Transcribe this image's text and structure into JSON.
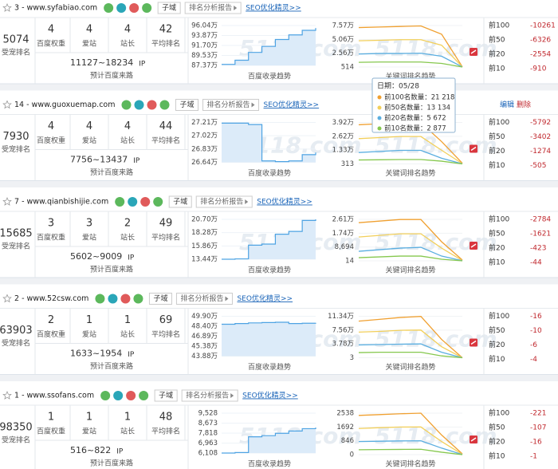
{
  "labels": {
    "score": "受宠排名",
    "stats": [
      "百度权重",
      "爱站",
      "站长",
      "平均排名"
    ],
    "ip": "IP",
    "ip_caption": "预计百度来路",
    "subdomain": "子域",
    "report": "排名分析报告",
    "seo": "SEO优化精灵>>",
    "index_caption": "百度收录趋势",
    "kw_caption": "关键词排名趋势",
    "levels": [
      "前100",
      "前50",
      "前20",
      "前10"
    ],
    "watermark": "5118.com",
    "edit": "编辑",
    "delete": "删除"
  },
  "kw_colors": [
    "#f0a030",
    "#f2cf5a",
    "#5aaee0",
    "#86c84e"
  ],
  "cards": [
    {
      "title": "3 - www.syfabiao.com",
      "score": 5074,
      "stats": [
        4,
        4,
        4,
        42
      ],
      "ip_range": "11127~18234",
      "index_chart": {
        "ylim": [
          873700,
          960400
        ],
        "yticks": [
          {
            "value": 960400,
            "label": "96.04万"
          },
          {
            "value": 938700,
            "label": "93.87万"
          },
          {
            "value": 917000,
            "label": "91.70万"
          },
          {
            "value": 895300,
            "label": "89.53万"
          },
          {
            "value": 873700,
            "label": "87.37万"
          }
        ],
        "values": [
          876000,
          885000,
          902000,
          915000,
          930000,
          940000,
          950000,
          955000
        ]
      },
      "kw_chart": {
        "ylim": [
          514,
          75700
        ],
        "yticks": [
          {
            "value": 75700,
            "label": "7.57万"
          },
          {
            "value": 50600,
            "label": "5.06万"
          },
          {
            "value": 25600,
            "label": "2.56万"
          },
          514
        ],
        "series": [
          [
            72000,
            73000,
            74000,
            75000,
            60000,
            1000
          ],
          [
            48000,
            49000,
            50000,
            50000,
            40000,
            800
          ],
          [
            24000,
            25000,
            25000,
            25500,
            20000,
            600
          ],
          [
            9000,
            9500,
            9600,
            9600,
            7000,
            514
          ]
        ]
      },
      "changes": [
        -10261,
        -6326,
        -2554,
        -910
      ]
    },
    {
      "title": "14 - www.guoxuemap.com",
      "score": 7930,
      "stats": [
        4,
        4,
        4,
        44
      ],
      "ip_range": "7756~13437",
      "actions": true,
      "index_chart": {
        "ylim": [
          266400,
          272100
        ],
        "yticks": [
          {
            "value": 272100,
            "label": "27.21万"
          },
          {
            "value": 270200,
            "label": "27.02万"
          },
          {
            "value": 268300,
            "label": "26.83万"
          },
          {
            "value": 266400,
            "label": "26.64万"
          }
        ],
        "values": [
          272000,
          272000,
          271800,
          266600,
          266500,
          266600,
          267500,
          267800
        ]
      },
      "kw_chart": {
        "ylim": [
          313,
          39200
        ],
        "yticks": [
          {
            "value": 39200,
            "label": "3.92万"
          },
          {
            "value": 26200,
            "label": "2.62万"
          },
          {
            "value": 13300,
            "label": "1.33万"
          },
          313
        ],
        "series": [
          [
            37000,
            38000,
            38500,
            39000,
            21218,
            1000
          ],
          [
            24000,
            25000,
            26000,
            26000,
            13134,
            600
          ],
          [
            11000,
            12000,
            13000,
            13000,
            5672,
            400
          ],
          [
            4000,
            4200,
            4400,
            4400,
            2877,
            313
          ]
        ]
      },
      "changes": [
        -5792,
        -3402,
        -1274,
        -505
      ],
      "tooltip": {
        "date": "日期：05/28",
        "rows": [
          "前100名数量：21 218",
          "前50名数量：13 134",
          "前20名数量：5 672",
          "前10名数量：2 877"
        ]
      }
    },
    {
      "title": "7 - www.qianbishijie.com",
      "score": 15685,
      "stats": [
        3,
        3,
        2,
        49
      ],
      "ip_range": "5602~9009",
      "index_chart": {
        "ylim": [
          134400,
          207000
        ],
        "yticks": [
          {
            "value": 207000,
            "label": "20.70万"
          },
          {
            "value": 182800,
            "label": "18.28万"
          },
          {
            "value": 158600,
            "label": "15.86万"
          },
          {
            "value": 134400,
            "label": "13.44万"
          }
        ],
        "values": [
          134400,
          135000,
          160000,
          162000,
          180000,
          185000,
          205000,
          207000
        ]
      },
      "kw_chart": {
        "ylim": [
          14,
          26100
        ],
        "yticks": [
          {
            "value": 26100,
            "label": "2.61万"
          },
          {
            "value": 17400,
            "label": "1.74万"
          },
          {
            "value": 8694,
            "label": "8,694"
          },
          14
        ],
        "series": [
          [
            24000,
            25000,
            26000,
            26000,
            12000,
            500
          ],
          [
            15000,
            16000,
            17000,
            17000,
            8000,
            200
          ],
          [
            6000,
            7000,
            8000,
            8500,
            3000,
            50
          ],
          [
            2000,
            2500,
            3000,
            3000,
            1000,
            14
          ]
        ]
      },
      "changes": [
        -2784,
        -1621,
        -423,
        -44
      ]
    },
    {
      "title": "2 - www.52csw.com",
      "score": 63903,
      "stats": [
        2,
        1,
        1,
        69
      ],
      "ip_range": "1633~1954",
      "index_chart": {
        "ylim": [
          438800,
          499000
        ],
        "yticks": [
          {
            "value": 499000,
            "label": "49.90万"
          },
          {
            "value": 484000,
            "label": "48.40万"
          },
          {
            "value": 468900,
            "label": "46.89万"
          },
          {
            "value": 453800,
            "label": "45.38万"
          },
          {
            "value": 438800,
            "label": "43.88万"
          }
        ],
        "values": [
          487000,
          488000,
          489000,
          489500,
          490000,
          488000,
          488500,
          489000
        ]
      },
      "kw_chart": {
        "ylim": [
          3,
          113400
        ],
        "yticks": [
          {
            "value": 113400,
            "label": "11.34万"
          },
          {
            "value": 75600,
            "label": "7.56万"
          },
          {
            "value": 37800,
            "label": "3.78万"
          },
          3
        ],
        "series": [
          [
            100000,
            105000,
            110000,
            113000,
            50000,
            100
          ],
          [
            70000,
            72000,
            75000,
            75600,
            30000,
            50
          ],
          [
            35000,
            36000,
            37000,
            37800,
            15000,
            20
          ],
          [
            14000,
            15000,
            15000,
            15000,
            5000,
            3
          ]
        ]
      },
      "changes": [
        -16,
        -10,
        -6,
        -4
      ]
    },
    {
      "title": "1 - www.ssofans.com",
      "score": 98350,
      "stats": [
        1,
        1,
        1,
        48
      ],
      "ip_range": "516~822",
      "index_chart": {
        "ylim": [
          6108,
          9528
        ],
        "yticks": [
          {
            "value": 9528,
            "label": "9,528"
          },
          {
            "value": 8673,
            "label": "8,673"
          },
          {
            "value": 7818,
            "label": "7,818"
          },
          {
            "value": 6963,
            "label": "6,963"
          },
          {
            "value": 6108,
            "label": "6,108"
          }
        ],
        "values": [
          6108,
          6150,
          7500,
          7600,
          7800,
          8000,
          8200,
          8300
        ]
      },
      "kw_chart": {
        "ylim": [
          0,
          2538
        ],
        "yticks": [
          2538,
          1692,
          846,
          0
        ],
        "series": [
          [
            2400,
            2450,
            2500,
            2538,
            1200,
            50
          ],
          [
            1600,
            1650,
            1690,
            1692,
            800,
            20
          ],
          [
            800,
            820,
            840,
            846,
            400,
            5
          ],
          [
            300,
            310,
            320,
            330,
            150,
            0
          ]
        ]
      },
      "changes": [
        -221,
        -107,
        -16,
        -1
      ]
    }
  ]
}
